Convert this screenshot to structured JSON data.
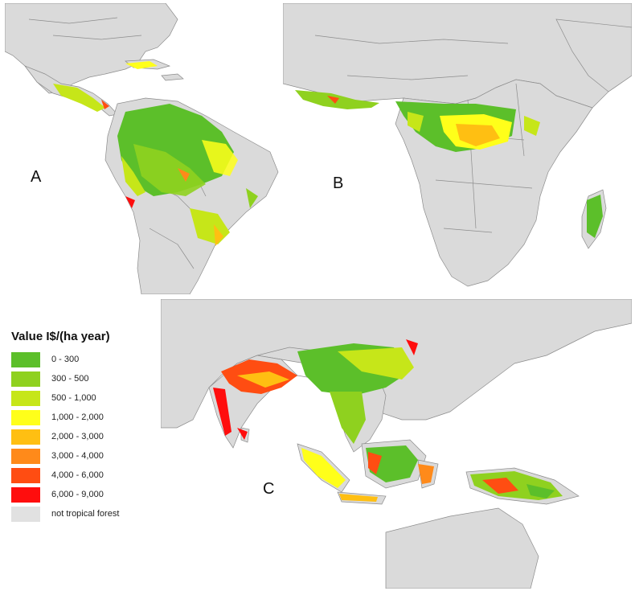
{
  "panels": [
    {
      "id": "A",
      "label": "A"
    },
    {
      "id": "B",
      "label": "B"
    },
    {
      "id": "C",
      "label": "C"
    }
  ],
  "legend": {
    "title": "Value I$/(ha year)",
    "items": [
      {
        "label": "0 - 300",
        "color": "#5cbf2a"
      },
      {
        "label": "300 - 500",
        "color": "#8fd11f"
      },
      {
        "label": "500 - 1,000",
        "color": "#c6e619"
      },
      {
        "label": "1,000 - 2,000",
        "color": "#ffff1a"
      },
      {
        "label": "2,000 - 3,000",
        "color": "#ffbf12"
      },
      {
        "label": "3,000 - 4,000",
        "color": "#ff8a1a"
      },
      {
        "label": "4,000 - 6,000",
        "color": "#ff4d12"
      },
      {
        "label": "6,000 - 9,000",
        "color": "#ff0d0d"
      },
      {
        "label": "not tropical forest",
        "color": "#e1e1e1"
      }
    ]
  },
  "colors": {
    "land": "#dadada",
    "border": "#8c8c8c",
    "ocean": "#ffffff"
  }
}
